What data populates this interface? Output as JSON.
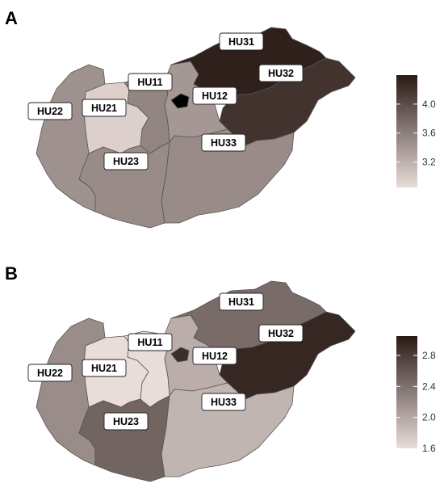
{
  "panels": [
    {
      "label": "A",
      "regions": [
        {
          "code": "HU11",
          "value": 3.55
        },
        {
          "code": "HU12",
          "value": 3.4
        },
        {
          "code": "HU21",
          "value": 2.95
        },
        {
          "code": "HU22",
          "value": 3.45
        },
        {
          "code": "HU23",
          "value": 3.5
        },
        {
          "code": "HU31",
          "value": 4.35
        },
        {
          "code": "HU32",
          "value": 4.2
        },
        {
          "code": "HU33",
          "value": 3.5
        }
      ],
      "legend": {
        "min": 2.85,
        "max": 4.4,
        "ticks": [
          "4.0",
          "3.6",
          "3.2"
        ],
        "tick_values": [
          4.0,
          3.6,
          3.2
        ]
      }
    },
    {
      "label": "B",
      "regions": [
        {
          "code": "HU11",
          "value": 1.6
        },
        {
          "code": "HU12",
          "value": 1.95
        },
        {
          "code": "HU21",
          "value": 1.6
        },
        {
          "code": "HU22",
          "value": 2.2
        },
        {
          "code": "HU23",
          "value": 2.5
        },
        {
          "code": "HU31",
          "value": 2.45
        },
        {
          "code": "HU32",
          "value": 2.95
        },
        {
          "code": "HU33",
          "value": 1.9
        },
        {
          "code": "HU11-inset",
          "value": 2.9
        }
      ],
      "legend": {
        "min": 1.6,
        "max": 3.05,
        "ticks": [
          "2.8",
          "2.4",
          "2.0",
          "1.6"
        ],
        "tick_values": [
          2.8,
          2.4,
          2.0,
          1.6
        ]
      }
    }
  ],
  "colors": {
    "low": "#e9ddd9",
    "high": "#2a1a16",
    "border": "#555555"
  }
}
